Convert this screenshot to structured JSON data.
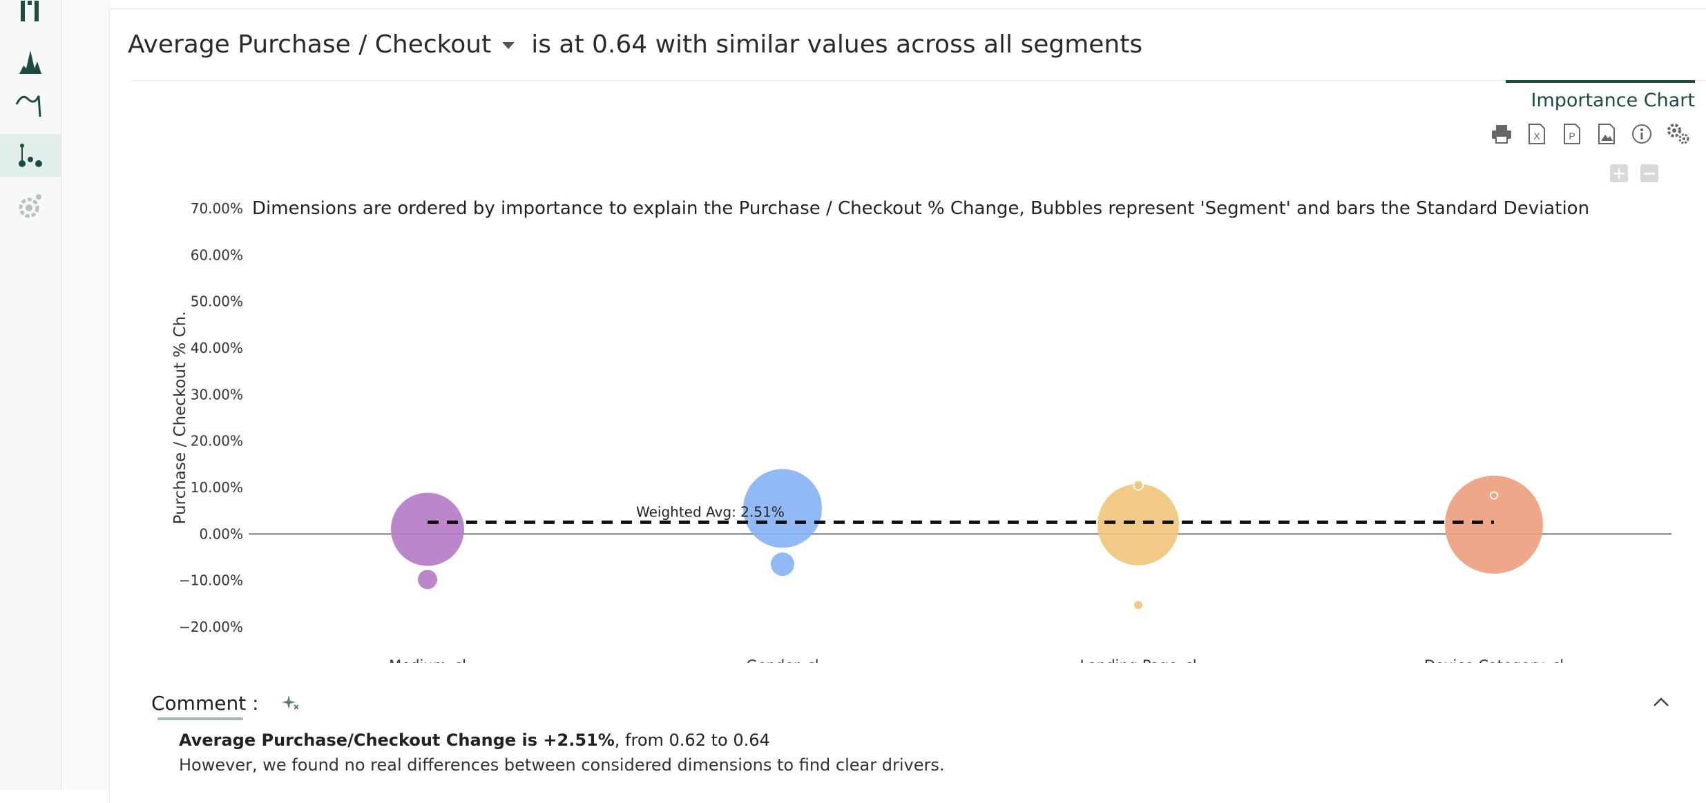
{
  "sidebar": {
    "items": [
      {
        "icon": "bar-chart-icon",
        "active": false
      },
      {
        "icon": "distribution-icon",
        "active": false
      },
      {
        "icon": "trend-curve-icon",
        "active": false
      },
      {
        "icon": "scatter-icon",
        "active": true
      },
      {
        "icon": "settings-gear-icon",
        "active": false
      }
    ]
  },
  "header": {
    "metric": "Average Purchase / Checkout",
    "summary": "is at 0.64 with similar values across all segments"
  },
  "tabs": {
    "importance": "Importance Chart"
  },
  "toolbar": {
    "icons": [
      "print-icon",
      "excel-export-icon",
      "powerpoint-export-icon",
      "image-export-icon",
      "info-icon",
      "settings-icon"
    ],
    "zoom_in": "+",
    "zoom_out": "−"
  },
  "colors": {
    "accent": "#1c4b44",
    "medium": "#b57cc8",
    "gender": "#87b3f5",
    "landing": "#f1c57c",
    "device": "#ee9f80"
  },
  "chart_data": {
    "type": "scatter",
    "title": "Dimensions are ordered by importance to explain the Purchase / Checkout % Change, Bubbles represent 'Segment' and bars the Standard Deviation",
    "ylabel": "Purchase / Checkout % Ch.",
    "ylim": [
      -20,
      70
    ],
    "yticks": [
      "70.00%",
      "60.00%",
      "50.00%",
      "40.00%",
      "30.00%",
      "20.00%",
      "10.00%",
      "0.00%",
      "−10.00%",
      "−20.00%"
    ],
    "ytick_values": [
      70,
      60,
      50,
      40,
      30,
      20,
      10,
      0,
      -10,
      -20
    ],
    "categories": [
      "Medium_cl",
      "Gender_cl",
      "Landing.Page_cl",
      "Device.Category_cl"
    ],
    "weighted_avg": {
      "label": "Weighted Avg: 2.51%",
      "value": 2.51
    },
    "bubbles": [
      {
        "category": "Medium_cl",
        "y": 1.0,
        "size": 53,
        "color": "#b57cc8"
      },
      {
        "category": "Medium_cl",
        "y": -9.8,
        "size": 14,
        "color": "#b57cc8"
      },
      {
        "category": "Gender_cl",
        "y": 5.5,
        "size": 57,
        "color": "#87b3f5"
      },
      {
        "category": "Gender_cl",
        "y": -6.5,
        "size": 17,
        "color": "#87b3f5"
      },
      {
        "category": "Landing.Page_cl",
        "y": 2.0,
        "size": 59,
        "color": "#f1c57c"
      },
      {
        "category": "Landing.Page_cl",
        "y": 10.5,
        "size": 7,
        "color": "#f1c57c"
      },
      {
        "category": "Landing.Page_cl",
        "y": -15.3,
        "size": 7,
        "color": "#f1c57c"
      },
      {
        "category": "Device.Category_cl",
        "y": 2.0,
        "size": 71,
        "color": "#ee9f80"
      },
      {
        "category": "Device.Category_cl",
        "y": 8.3,
        "size": 5,
        "color": "#ee9f80"
      }
    ]
  },
  "comment": {
    "label": "Comment :",
    "bold": "Average Purchase/Checkout Change is +2.51%",
    "rest": ", from 0.62 to 0.64",
    "line2": "However, we found no real differences between considered dimensions to find clear drivers."
  }
}
